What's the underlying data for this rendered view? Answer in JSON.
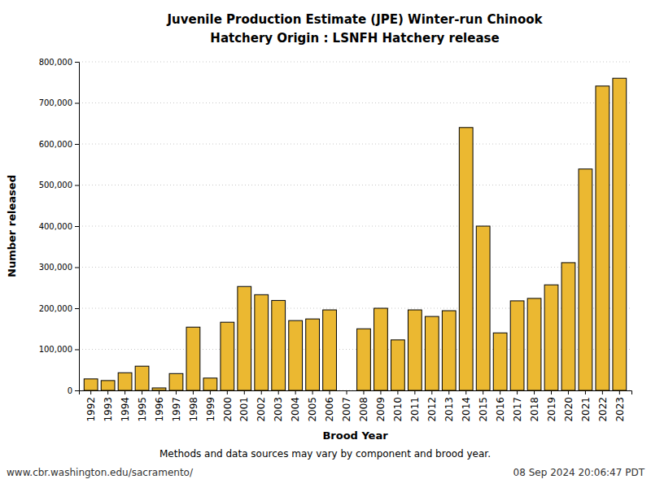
{
  "chart_data": {
    "type": "bar",
    "title": "Juvenile Production Estimate (JPE) Winter-run Chinook",
    "subtitle": "Hatchery Origin : LSNFH Hatchery release",
    "x_label": "Brood Year",
    "y_label": "Number released",
    "annotations": [
      "Methods and data sources may vary by component and brood year.",
      "www.cbr.washington.edu/sacramento/",
      "08 Sep 2024 20:06:47 PDT"
    ],
    "categories": [
      "1992",
      "1993",
      "1994",
      "1995",
      "1996",
      "1997",
      "1998",
      "1999",
      "2000",
      "2001",
      "2002",
      "2003",
      "2004",
      "2005",
      "2006",
      "2007",
      "2008",
      "2009",
      "2010",
      "2011",
      "2012",
      "2013",
      "2014",
      "2015",
      "2016",
      "2017",
      "2018",
      "2019",
      "2020",
      "2021",
      "2022",
      "2023"
    ],
    "values": [
      28000,
      24000,
      43000,
      59000,
      6000,
      41000,
      154000,
      30000,
      166000,
      253000,
      233000,
      219000,
      170000,
      174000,
      196000,
      null,
      150000,
      200000,
      123000,
      196000,
      180000,
      194000,
      640000,
      400000,
      140000,
      218000,
      224000,
      257000,
      311000,
      539000,
      741000,
      760000
    ],
    "color": "#ebb831",
    "ylim": [
      0,
      800000
    ],
    "yticks": [
      0,
      {
        "value": 100000,
        "label": "100,000"
      },
      {
        "value": 200000,
        "label": "200,000"
      },
      {
        "value": 300000,
        "label": "300,000"
      },
      {
        "value": 400000,
        "label": "400,000"
      },
      {
        "value": 500000,
        "label": "500,000"
      },
      {
        "value": 600000,
        "label": "600,000"
      },
      {
        "value": 700000,
        "label": "700,000"
      },
      {
        "value": 800000,
        "label": "800,000"
      }
    ],
    "grid": true
  }
}
